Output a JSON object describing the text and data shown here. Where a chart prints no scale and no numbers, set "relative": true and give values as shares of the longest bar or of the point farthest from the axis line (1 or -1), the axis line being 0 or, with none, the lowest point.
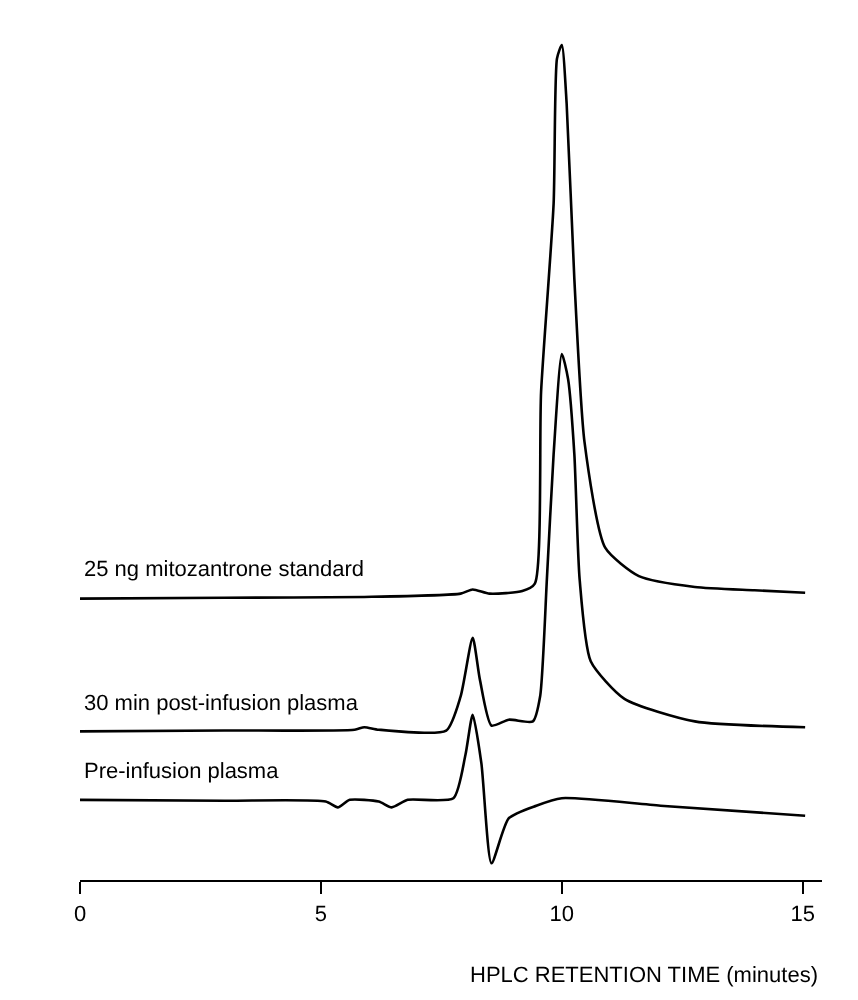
{
  "chart_data": {
    "type": "line",
    "relative": true,
    "xlabel": "HPLC RETENTION TIME (minutes)",
    "xlim": [
      0,
      15.4
    ],
    "xticks": [
      0,
      5,
      10,
      15
    ],
    "grid": false,
    "legend": false,
    "marker": "none",
    "line_style": "solid",
    "series": [
      {
        "name": "25 ng mitozantrone standard",
        "color": "#000000",
        "x": [
          0,
          3,
          5.9,
          7.9,
          8.15,
          8.5,
          9.18,
          9.44,
          9.57,
          9.83,
          9.9,
          10,
          10.1,
          10.26,
          10.47,
          10.9,
          11.6,
          12.76,
          14,
          15.05
        ],
        "values": [
          0.337,
          0.338,
          0.339,
          0.343,
          0.348,
          0.343,
          0.346,
          0.355,
          0.585,
          0.81,
          0.984,
          1.0,
          0.93,
          0.72,
          0.525,
          0.398,
          0.364,
          0.351,
          0.347,
          0.344
        ]
      },
      {
        "name": "30 min post-infusion plasma",
        "color": "#000000",
        "x": [
          0,
          3,
          5.7,
          5.9,
          6.2,
          7.6,
          7.9,
          8.15,
          8.3,
          8.54,
          8.9,
          9.4,
          9.55,
          9.69,
          9.83,
          10,
          10.13,
          10.26,
          10.37,
          10.6,
          11.3,
          12.76,
          15.05
        ],
        "values": [
          0.178,
          0.179,
          0.18,
          0.183,
          0.18,
          0.179,
          0.22,
          0.29,
          0.24,
          0.185,
          0.192,
          0.19,
          0.22,
          0.36,
          0.51,
          0.63,
          0.6,
          0.51,
          0.36,
          0.262,
          0.217,
          0.19,
          0.183
        ]
      },
      {
        "name": "Pre-infusion plasma",
        "color": "#000000",
        "x": [
          0,
          3,
          5.1,
          5.35,
          5.6,
          6.2,
          6.47,
          6.8,
          7.75,
          8.0,
          8.15,
          8.33,
          8.54,
          8.9,
          9.47,
          10,
          12.05,
          15.05
        ],
        "values": [
          0.096,
          0.095,
          0.094,
          0.087,
          0.096,
          0.094,
          0.087,
          0.096,
          0.098,
          0.15,
          0.198,
          0.14,
          0.02,
          0.074,
          0.089,
          0.098,
          0.089,
          0.077
        ]
      }
    ]
  }
}
